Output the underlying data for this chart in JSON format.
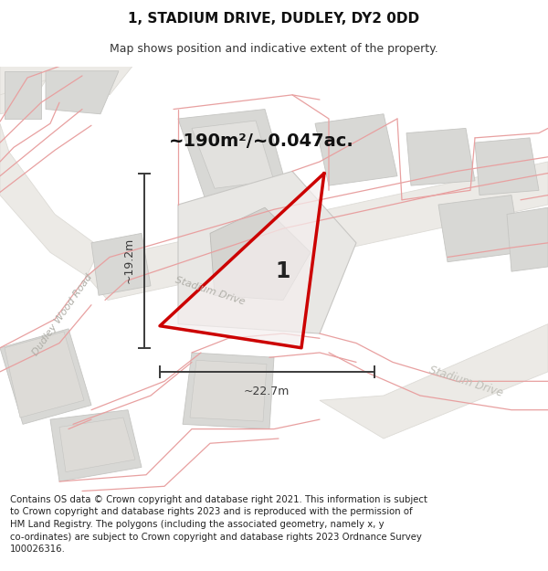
{
  "title": "1, STADIUM DRIVE, DUDLEY, DY2 0DD",
  "subtitle": "Map shows position and indicative extent of the property.",
  "footer": "Contains OS data © Crown copyright and database right 2021. This information is subject\nto Crown copyright and database rights 2023 and is reproduced with the permission of\nHM Land Registry. The polygons (including the associated geometry, namely x, y\nco-ordinates) are subject to Crown copyright and database rights 2023 Ordnance Survey\n100026316.",
  "map_bg": "#f7f6f4",
  "building_fill": "#d8d8d5",
  "building_stroke": "#c5c5c2",
  "road_fill": "#eceae6",
  "pink_line": "#e8a0a0",
  "red_outline": "#cc0000",
  "prop_fill": "#f5efef",
  "dim_color": "#3a3a3a",
  "white": "#ffffff",
  "area_text": "~190m²/~0.047ac.",
  "dim_w": "~22.7m",
  "dim_h": "~19.2m",
  "prop_label": "1",
  "label_dudley": "Dudley Wood Road",
  "label_stadium1": "Stadium Drive",
  "label_stadium2": "Stadium Drive",
  "title_fs": 11,
  "subtitle_fs": 9,
  "footer_fs": 7.3,
  "area_fs": 14,
  "dim_fs": 9,
  "road_label_fs": 8
}
